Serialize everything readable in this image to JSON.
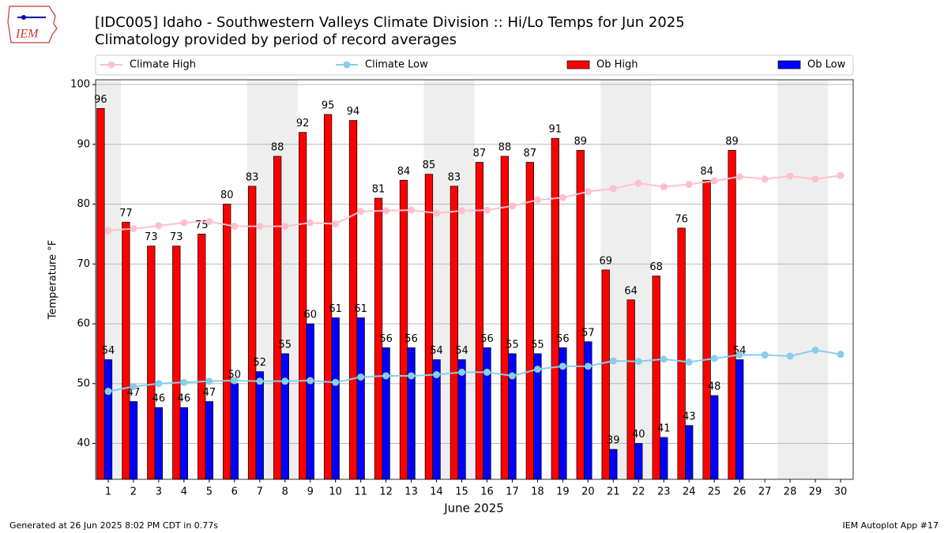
{
  "chart_data": {
    "type": "bar",
    "title": "[IDC005] Idaho - Southwestern Valleys Climate Division :: Hi/Lo Temps for Jun 2025",
    "subtitle": "Climatology provided by period of record averages",
    "logo_text": "IEM",
    "xlabel": "June 2025",
    "ylabel": "Temperature °F",
    "footer_left": "Generated at 26 Jun 2025 8:02 PM CDT in 0.77s",
    "footer_right": "IEM Autoplot App #17",
    "x": [
      1,
      2,
      3,
      4,
      5,
      6,
      7,
      8,
      9,
      10,
      11,
      12,
      13,
      14,
      15,
      16,
      17,
      18,
      19,
      20,
      21,
      22,
      23,
      24,
      25,
      26,
      27,
      28,
      29,
      30
    ],
    "xlim": [
      0.5,
      30.5
    ],
    "xticks": [
      1,
      2,
      3,
      4,
      5,
      6,
      7,
      8,
      9,
      10,
      11,
      12,
      13,
      14,
      15,
      16,
      17,
      18,
      19,
      20,
      21,
      22,
      23,
      24,
      25,
      26,
      27,
      28,
      29,
      30
    ],
    "ylim": [
      34,
      100.8
    ],
    "yticks": [
      40,
      50,
      60,
      70,
      80,
      90,
      100
    ],
    "grid": true,
    "legend": "top",
    "shaded_ranges": [
      [
        0.5,
        1.5
      ],
      [
        6.5,
        8.5
      ],
      [
        13.5,
        15.5
      ],
      [
        20.5,
        22.5
      ],
      [
        27.5,
        29.5
      ]
    ],
    "shade_color": "#eeeeee",
    "series": [
      {
        "name": "Climate High",
        "type": "line",
        "color": "pink",
        "values": [
          75.6,
          75.9,
          76.4,
          76.9,
          77.1,
          76.3,
          76.3,
          76.3,
          76.9,
          76.7,
          78.8,
          78.9,
          79.0,
          78.5,
          78.9,
          79.0,
          79.7,
          80.7,
          81.1,
          82.1,
          82.6,
          83.5,
          82.9,
          83.3,
          83.9,
          84.6,
          84.2,
          84.7,
          84.2,
          84.8
        ]
      },
      {
        "name": "Climate Low",
        "type": "line",
        "color": "skyblue",
        "values": [
          48.7,
          49.5,
          50.0,
          50.2,
          50.4,
          50.5,
          50.4,
          50.4,
          50.5,
          50.2,
          51.1,
          51.3,
          51.3,
          51.5,
          51.9,
          51.9,
          51.3,
          52.4,
          52.9,
          52.9,
          53.8,
          53.7,
          54.1,
          53.6,
          54.2,
          54.8,
          54.8,
          54.6,
          55.6,
          54.9
        ]
      },
      {
        "name": "Ob High",
        "type": "bar",
        "color": "red",
        "values": [
          96,
          77,
          73,
          73,
          75,
          80,
          83,
          88,
          92,
          95,
          94,
          81,
          84,
          85,
          83,
          87,
          88,
          87,
          91,
          89,
          69,
          64,
          68,
          76,
          84,
          89,
          null,
          null,
          null,
          null
        ]
      },
      {
        "name": "Ob Low",
        "type": "bar",
        "color": "blue",
        "values": [
          54,
          47,
          46,
          46,
          47,
          50,
          52,
          55,
          60,
          61,
          61,
          56,
          56,
          54,
          54,
          56,
          55,
          55,
          56,
          57,
          39,
          40,
          41,
          43,
          48,
          54,
          null,
          null,
          null,
          null
        ]
      }
    ]
  }
}
